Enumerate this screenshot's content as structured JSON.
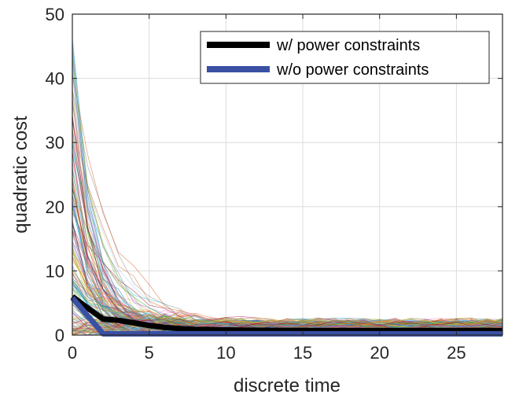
{
  "chart_data": {
    "type": "line",
    "xlabel": "discrete time",
    "ylabel": "quadratic cost",
    "xlim": [
      0,
      28
    ],
    "ylim": [
      0,
      50
    ],
    "xticks": [
      0,
      5,
      10,
      15,
      20,
      25
    ],
    "yticks": [
      0,
      10,
      20,
      30,
      40,
      50
    ],
    "grid": true,
    "legend_position": "top-right",
    "series": [
      {
        "name": "w/ power constraints",
        "color": "#000000",
        "x": [
          0,
          1,
          2,
          3,
          4,
          5,
          6,
          7,
          8,
          10,
          12,
          15,
          20,
          25,
          28
        ],
        "y": [
          6.0,
          4.2,
          2.5,
          2.3,
          1.9,
          1.5,
          1.2,
          1.0,
          0.9,
          0.8,
          0.75,
          0.7,
          0.7,
          0.7,
          0.7
        ]
      },
      {
        "name": "w/o power constraints",
        "color": "#3a50a3",
        "x": [
          0,
          1,
          2,
          3,
          5,
          10,
          15,
          20,
          25,
          28
        ],
        "y": [
          5.8,
          3.0,
          0.2,
          0.2,
          0.2,
          0.2,
          0.2,
          0.2,
          0.2,
          0.2
        ]
      }
    ],
    "background_trajectories": {
      "description": "many thin multicolored sample trajectories",
      "count": 160,
      "start_range": [
        0,
        48
      ],
      "tail_level": [
        0.3,
        3.5
      ],
      "colors": [
        "#1f77b4",
        "#ff7f0e",
        "#2ca02c",
        "#d62728",
        "#9467bd",
        "#8c564b",
        "#e377c2",
        "#7f7f7f",
        "#bcbd22",
        "#17becf",
        "#4dbeee",
        "#edb120",
        "#d95319",
        "#77ac30",
        "#a2142f",
        "#0072bd",
        "#f4a6a6",
        "#9ecae1"
      ]
    }
  }
}
